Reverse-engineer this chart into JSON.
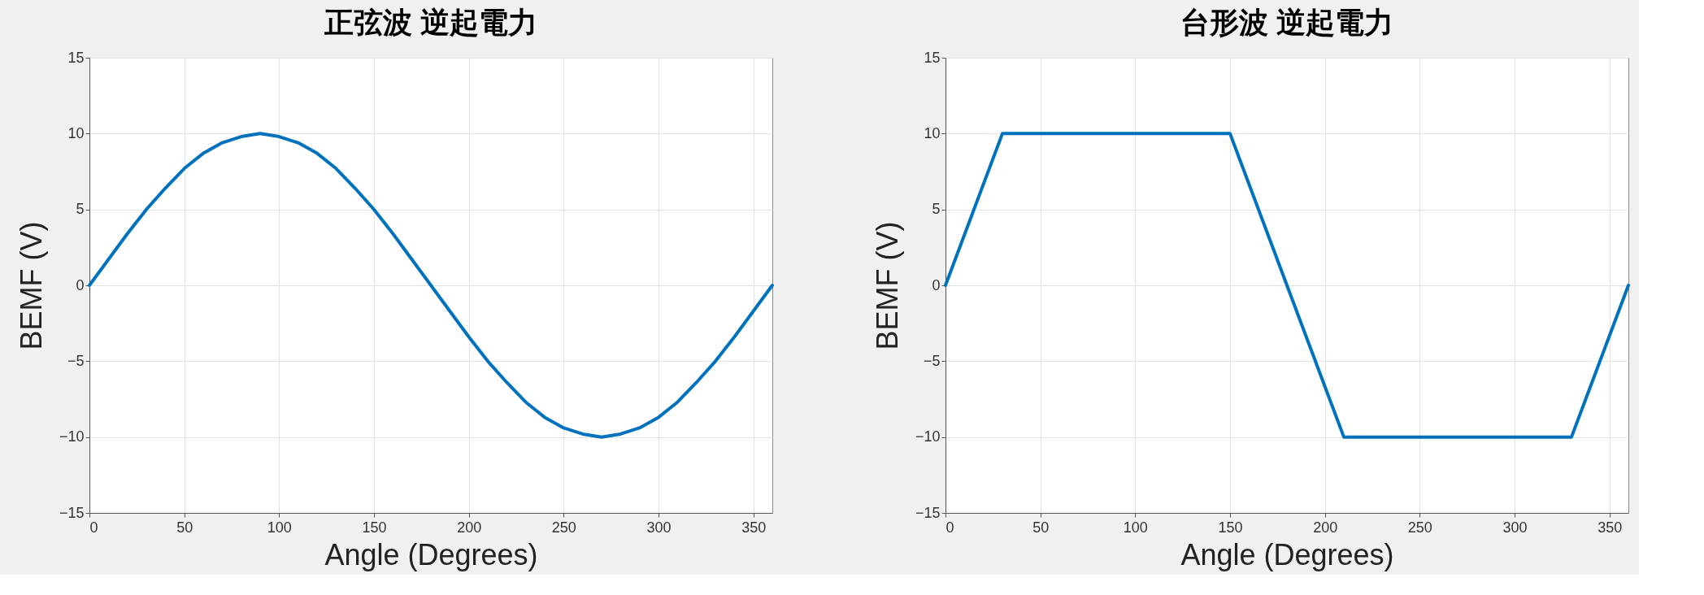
{
  "chart_data": [
    {
      "type": "line",
      "title": "正弦波 逆起電力",
      "xlabel": "Angle (Degrees)",
      "ylabel": "BEMF (V)",
      "xlim": [
        0,
        360
      ],
      "xticks": [
        0,
        50,
        100,
        150,
        200,
        250,
        300,
        350
      ],
      "ylim": [
        -15,
        15
      ],
      "yticks": [
        -15,
        -10,
        -5,
        0,
        5,
        10,
        15
      ],
      "grid": true,
      "marker": "none",
      "line_style": "solid",
      "series": [
        {
          "color": "#0072bd",
          "x": [
            0,
            10,
            20,
            30,
            40,
            50,
            60,
            70,
            80,
            90,
            100,
            110,
            120,
            130,
            140,
            150,
            160,
            170,
            180,
            190,
            200,
            210,
            220,
            230,
            240,
            250,
            260,
            270,
            280,
            290,
            300,
            310,
            320,
            330,
            340,
            350,
            360
          ],
          "values": [
            0,
            1.7,
            3.4,
            5,
            6.4,
            7.7,
            8.7,
            9.4,
            9.8,
            10,
            9.8,
            9.4,
            8.7,
            7.7,
            6.4,
            5,
            3.4,
            1.7,
            0,
            -1.7,
            -3.4,
            -5,
            -6.4,
            -7.7,
            -8.7,
            -9.4,
            -9.8,
            -10,
            -9.8,
            -9.4,
            -8.7,
            -7.7,
            -6.4,
            -5,
            -3.4,
            -1.7,
            0
          ]
        }
      ]
    },
    {
      "type": "line",
      "title": "台形波 逆起電力",
      "xlabel": "Angle (Degrees)",
      "ylabel": "BEMF (V)",
      "xlim": [
        0,
        360
      ],
      "xticks": [
        0,
        50,
        100,
        150,
        200,
        250,
        300,
        350
      ],
      "ylim": [
        -15,
        15
      ],
      "yticks": [
        -15,
        -10,
        -5,
        0,
        5,
        10,
        15
      ],
      "grid": true,
      "marker": "none",
      "line_style": "solid",
      "series": [
        {
          "color": "#0072bd",
          "x": [
            0,
            30,
            150,
            210,
            330,
            360
          ],
          "values": [
            0,
            10,
            10,
            -10,
            -10,
            0
          ]
        }
      ]
    }
  ]
}
